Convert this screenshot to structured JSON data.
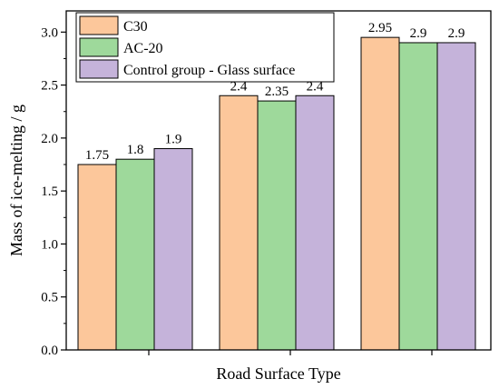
{
  "chart_data": {
    "type": "bar",
    "title": "",
    "xlabel": "Road Surface Type",
    "ylabel": "Mass of ice-melting / g",
    "ylim": [
      0,
      3.2
    ],
    "yticks": [
      "0.0",
      "0.5",
      "1.0",
      "1.5",
      "2.0",
      "2.5",
      "3.0"
    ],
    "categories": [
      "",
      "",
      ""
    ],
    "series": [
      {
        "name": "C30",
        "values": [
          1.75,
          2.4,
          2.95
        ],
        "labels": [
          "1.75",
          "2.4",
          "2.95"
        ],
        "color": "#fcc79b"
      },
      {
        "name": "AC-20",
        "values": [
          1.8,
          2.35,
          2.9
        ],
        "labels": [
          "1.8",
          "2.35",
          "2.9"
        ],
        "color": "#9ed99b"
      },
      {
        "name": "Control group - Glass surface",
        "values": [
          1.9,
          2.4,
          2.9
        ],
        "labels": [
          "1.9",
          "2.4",
          "2.9"
        ],
        "color": "#c5b3da"
      }
    ],
    "grid": false,
    "legend_position": "top-left"
  }
}
